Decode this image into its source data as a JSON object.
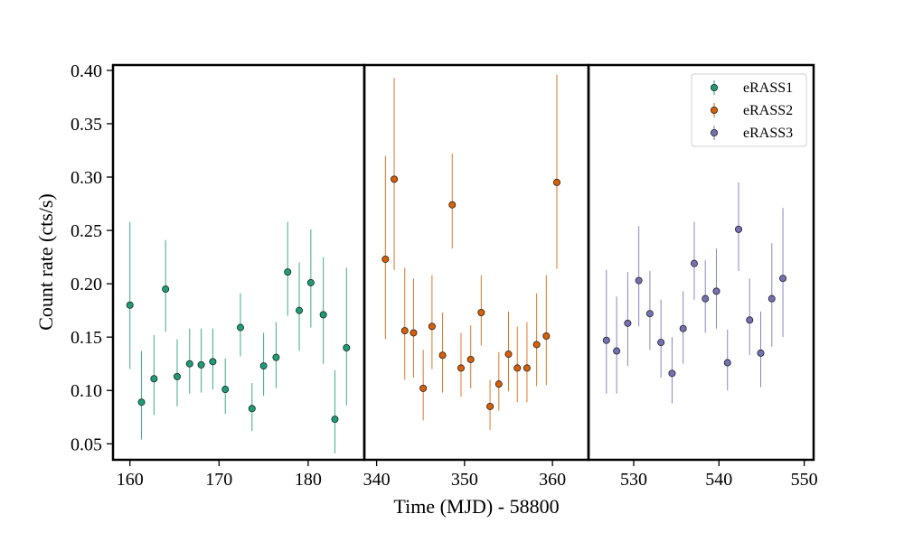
{
  "chart_data": {
    "type": "scatter",
    "title": "",
    "xlabel": "Time (MJD) - 58800",
    "ylabel": "Count rate (cts/s)",
    "ylim": [
      0.035,
      0.405
    ],
    "yticks": [
      0.05,
      0.1,
      0.15,
      0.2,
      0.25,
      0.3,
      0.35,
      0.4
    ],
    "ytick_labels": [
      "0.05",
      "0.10",
      "0.15",
      "0.20",
      "0.25",
      "0.30",
      "0.35",
      "0.40"
    ],
    "legend_position": "top-right",
    "grid": false,
    "panels": [
      {
        "xlim": [
          158.1,
          186.3
        ],
        "xticks": [
          160,
          170,
          180
        ],
        "xtick_labels": [
          "160",
          "170",
          "180"
        ],
        "series": [
          {
            "name": "eRASS1",
            "color": "#1b9e77",
            "points": [
              {
                "x": 160.0,
                "y": 0.18,
                "lo": 0.12,
                "hi": 0.258
              },
              {
                "x": 161.3,
                "y": 0.089,
                "lo": 0.054,
                "hi": 0.137
              },
              {
                "x": 162.7,
                "y": 0.111,
                "lo": 0.077,
                "hi": 0.152
              },
              {
                "x": 164.0,
                "y": 0.195,
                "lo": 0.155,
                "hi": 0.241
              },
              {
                "x": 165.3,
                "y": 0.113,
                "lo": 0.085,
                "hi": 0.148
              },
              {
                "x": 166.7,
                "y": 0.125,
                "lo": 0.097,
                "hi": 0.158
              },
              {
                "x": 168.0,
                "y": 0.124,
                "lo": 0.098,
                "hi": 0.158
              },
              {
                "x": 169.3,
                "y": 0.127,
                "lo": 0.101,
                "hi": 0.158
              },
              {
                "x": 170.7,
                "y": 0.101,
                "lo": 0.078,
                "hi": 0.13
              },
              {
                "x": 172.4,
                "y": 0.159,
                "lo": 0.132,
                "hi": 0.191
              },
              {
                "x": 173.7,
                "y": 0.083,
                "lo": 0.062,
                "hi": 0.107
              },
              {
                "x": 175.0,
                "y": 0.123,
                "lo": 0.095,
                "hi": 0.154
              },
              {
                "x": 176.4,
                "y": 0.131,
                "lo": 0.102,
                "hi": 0.164
              },
              {
                "x": 177.7,
                "y": 0.211,
                "lo": 0.17,
                "hi": 0.258
              },
              {
                "x": 179.0,
                "y": 0.175,
                "lo": 0.137,
                "hi": 0.22
              },
              {
                "x": 180.3,
                "y": 0.201,
                "lo": 0.159,
                "hi": 0.251
              },
              {
                "x": 181.7,
                "y": 0.171,
                "lo": 0.125,
                "hi": 0.225
              },
              {
                "x": 183.0,
                "y": 0.073,
                "lo": 0.041,
                "hi": 0.119
              },
              {
                "x": 184.3,
                "y": 0.14,
                "lo": 0.086,
                "hi": 0.215
              }
            ]
          }
        ]
      },
      {
        "xlim": [
          338.6,
          364.1
        ],
        "xticks": [
          340,
          350,
          360
        ],
        "xtick_labels": [
          "340",
          "350",
          "360"
        ],
        "series": [
          {
            "name": "eRASS2",
            "color": "#d95f02",
            "points": [
              {
                "x": 341.0,
                "y": 0.223,
                "lo": 0.148,
                "hi": 0.32
              },
              {
                "x": 342.0,
                "y": 0.298,
                "lo": 0.213,
                "hi": 0.393
              },
              {
                "x": 343.2,
                "y": 0.156,
                "lo": 0.11,
                "hi": 0.215
              },
              {
                "x": 344.2,
                "y": 0.154,
                "lo": 0.112,
                "hi": 0.205
              },
              {
                "x": 345.3,
                "y": 0.102,
                "lo": 0.072,
                "hi": 0.138
              },
              {
                "x": 346.3,
                "y": 0.16,
                "lo": 0.12,
                "hi": 0.208
              },
              {
                "x": 347.5,
                "y": 0.133,
                "lo": 0.098,
                "hi": 0.173
              },
              {
                "x": 348.6,
                "y": 0.274,
                "lo": 0.233,
                "hi": 0.322
              },
              {
                "x": 349.6,
                "y": 0.121,
                "lo": 0.094,
                "hi": 0.154
              },
              {
                "x": 350.7,
                "y": 0.129,
                "lo": 0.102,
                "hi": 0.161
              },
              {
                "x": 351.9,
                "y": 0.173,
                "lo": 0.142,
                "hi": 0.208
              },
              {
                "x": 352.9,
                "y": 0.085,
                "lo": 0.063,
                "hi": 0.11
              },
              {
                "x": 353.9,
                "y": 0.106,
                "lo": 0.081,
                "hi": 0.136
              },
              {
                "x": 355.0,
                "y": 0.134,
                "lo": 0.099,
                "hi": 0.174
              },
              {
                "x": 356.0,
                "y": 0.121,
                "lo": 0.089,
                "hi": 0.16
              },
              {
                "x": 357.1,
                "y": 0.121,
                "lo": 0.089,
                "hi": 0.164
              },
              {
                "x": 358.2,
                "y": 0.143,
                "lo": 0.104,
                "hi": 0.191
              },
              {
                "x": 359.3,
                "y": 0.151,
                "lo": 0.105,
                "hi": 0.208
              },
              {
                "x": 360.5,
                "y": 0.295,
                "lo": 0.214,
                "hi": 0.396
              }
            ]
          }
        ]
      },
      {
        "xlim": [
          524.7,
          551.1
        ],
        "xticks": [
          530,
          540,
          550
        ],
        "xtick_labels": [
          "530",
          "540",
          "550"
        ],
        "series": [
          {
            "name": "eRASS3",
            "color": "#7570b3",
            "points": [
              {
                "x": 526.8,
                "y": 0.147,
                "lo": 0.097,
                "hi": 0.213
              },
              {
                "x": 528.0,
                "y": 0.137,
                "lo": 0.097,
                "hi": 0.188
              },
              {
                "x": 529.3,
                "y": 0.163,
                "lo": 0.123,
                "hi": 0.211
              },
              {
                "x": 530.6,
                "y": 0.203,
                "lo": 0.16,
                "hi": 0.254
              },
              {
                "x": 531.9,
                "y": 0.172,
                "lo": 0.138,
                "hi": 0.212
              },
              {
                "x": 533.2,
                "y": 0.145,
                "lo": 0.112,
                "hi": 0.185
              },
              {
                "x": 534.5,
                "y": 0.116,
                "lo": 0.088,
                "hi": 0.15
              },
              {
                "x": 535.8,
                "y": 0.158,
                "lo": 0.125,
                "hi": 0.193
              },
              {
                "x": 537.1,
                "y": 0.219,
                "lo": 0.185,
                "hi": 0.258
              },
              {
                "x": 538.4,
                "y": 0.186,
                "lo": 0.154,
                "hi": 0.222
              },
              {
                "x": 539.7,
                "y": 0.193,
                "lo": 0.158,
                "hi": 0.233
              },
              {
                "x": 541.0,
                "y": 0.126,
                "lo": 0.1,
                "hi": 0.157
              },
              {
                "x": 542.3,
                "y": 0.251,
                "lo": 0.212,
                "hi": 0.295
              },
              {
                "x": 543.6,
                "y": 0.166,
                "lo": 0.133,
                "hi": 0.205
              },
              {
                "x": 544.9,
                "y": 0.135,
                "lo": 0.103,
                "hi": 0.174
              },
              {
                "x": 546.2,
                "y": 0.186,
                "lo": 0.141,
                "hi": 0.238
              },
              {
                "x": 547.5,
                "y": 0.205,
                "lo": 0.15,
                "hi": 0.271
              }
            ]
          }
        ]
      }
    ]
  }
}
